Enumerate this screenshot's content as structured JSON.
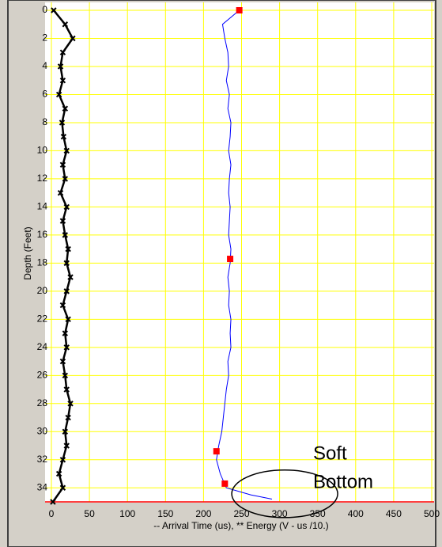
{
  "chart_data": {
    "type": "profile",
    "ylabel": "Depth (Feet)",
    "xlabel": "-- Arrival Time (us), ** Energy (V - us /10.)",
    "xlim": [
      0,
      500
    ],
    "xticks": [
      0,
      50,
      100,
      150,
      200,
      250,
      300,
      350,
      400,
      450,
      500
    ],
    "ylim": [
      0,
      35
    ],
    "y_inverted": true,
    "yticks": [
      0,
      2,
      4,
      6,
      8,
      10,
      12,
      14,
      16,
      18,
      20,
      22,
      24,
      26,
      28,
      30,
      32,
      34
    ],
    "grid": true,
    "grid_color": "#ffff00",
    "series": [
      {
        "name": "Arrival Time",
        "kind": "line",
        "color": "#0000ff",
        "y": [
          0,
          1,
          2,
          3,
          4,
          5,
          6,
          7,
          8,
          9,
          10,
          11,
          12,
          13,
          14,
          15,
          16,
          17,
          18,
          19,
          20,
          21,
          22,
          23,
          24,
          25,
          26,
          27,
          28,
          29,
          30,
          31,
          32,
          33,
          34,
          34.5,
          34.8
        ],
        "x": [
          247,
          225,
          228,
          232,
          233,
          230,
          234,
          232,
          236,
          235,
          233,
          236,
          234,
          233,
          235,
          234,
          233,
          236,
          235,
          232,
          234,
          233,
          236,
          235,
          236,
          232,
          233,
          230,
          228,
          226,
          224,
          220,
          217,
          222,
          230,
          262,
          290
        ]
      },
      {
        "name": "Energy",
        "kind": "xmark",
        "color": "#000000",
        "y": [
          0,
          1,
          2,
          3,
          4,
          5,
          6,
          7,
          8,
          9,
          10,
          11,
          12,
          13,
          14,
          15,
          16,
          17,
          18,
          19,
          20,
          21,
          22,
          23,
          24,
          25,
          26,
          27,
          28,
          29,
          30,
          31,
          32,
          33,
          34,
          35
        ],
        "x": [
          3,
          18,
          28,
          15,
          12,
          15,
          10,
          18,
          14,
          16,
          20,
          15,
          18,
          12,
          20,
          15,
          18,
          22,
          20,
          25,
          20,
          15,
          22,
          18,
          20,
          15,
          18,
          20,
          25,
          22,
          18,
          20,
          15,
          10,
          15,
          2
        ]
      },
      {
        "name": "Picks",
        "kind": "square",
        "color": "#ff0000",
        "y": [
          0,
          17.7,
          31.4,
          33.7
        ],
        "x": [
          247,
          235,
          217,
          228
        ]
      }
    ],
    "annotation": {
      "text_lines": [
        "Soft",
        "Bottom"
      ],
      "x": 340,
      "y": 34.2
    }
  }
}
